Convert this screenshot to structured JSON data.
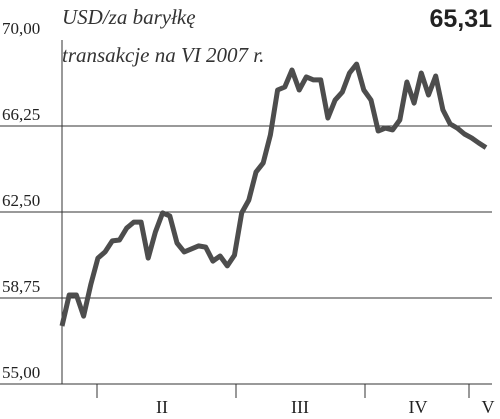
{
  "chart_data": {
    "type": "line",
    "title": "USD/za baryłkę",
    "subtitle": "transakcje na VI 2007 r.",
    "headline_value": "65,31",
    "color": "#4d4d4d",
    "month_labels": [
      "II",
      "III",
      "IV",
      "V"
    ],
    "values": [
      57.53,
      58.88,
      58.88,
      57.96,
      59.32,
      60.49,
      60.76,
      61.24,
      61.28,
      61.8,
      62.06,
      62.06,
      60.49,
      61.63,
      62.46,
      62.33,
      61.15,
      60.76,
      60.89,
      61.02,
      60.97,
      60.36,
      60.58,
      60.15,
      60.62,
      62.46,
      63.02,
      64.24,
      64.64,
      65.86,
      67.82,
      67.95,
      68.69,
      67.82,
      68.39,
      68.26,
      68.26,
      66.6,
      67.38,
      67.73,
      68.56,
      68.95,
      67.82,
      67.38,
      66.03,
      66.16,
      66.08,
      66.51,
      68.17,
      67.25,
      68.56,
      67.6,
      68.43,
      66.95,
      66.34,
      66.16,
      65.9,
      65.73,
      65.51,
      65.31
    ],
    "ylim": [
      55,
      70
    ],
    "yticks": [
      {
        "value": 55,
        "label": "55,00"
      },
      {
        "value": 58.75,
        "label": "58,75"
      },
      {
        "value": 62.5,
        "label": "62,50"
      },
      {
        "value": 66.25,
        "label": "66,25"
      },
      {
        "value": 70,
        "label": "70,00"
      }
    ],
    "grid": true
  }
}
